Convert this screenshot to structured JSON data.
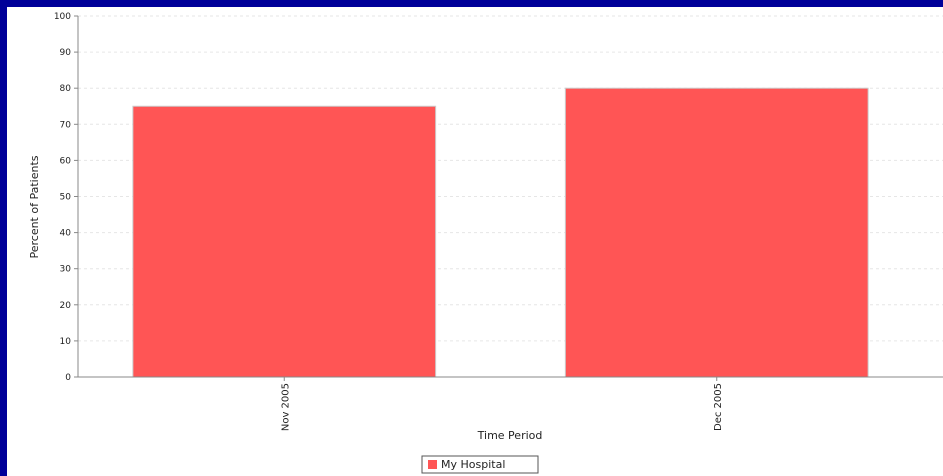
{
  "chart_data": {
    "type": "bar",
    "title": "",
    "xlabel": "Time Period",
    "ylabel": "Percent of Patients",
    "categories": [
      "Nov 2005",
      "Dec 2005"
    ],
    "series": [
      {
        "name": "My Hospital",
        "values": [
          75,
          80
        ],
        "color": "#ff5555"
      }
    ],
    "ylim": [
      0,
      100
    ],
    "yticks": [
      0,
      10,
      20,
      30,
      40,
      50,
      60,
      70,
      80,
      90,
      100
    ],
    "grid": true,
    "legend_position": "bottom"
  },
  "colors": {
    "frame": "#000099",
    "background": "#ffffff",
    "bar": "#ff5555",
    "bar_outline": "#cccccc",
    "grid": "#e6e6e6"
  }
}
